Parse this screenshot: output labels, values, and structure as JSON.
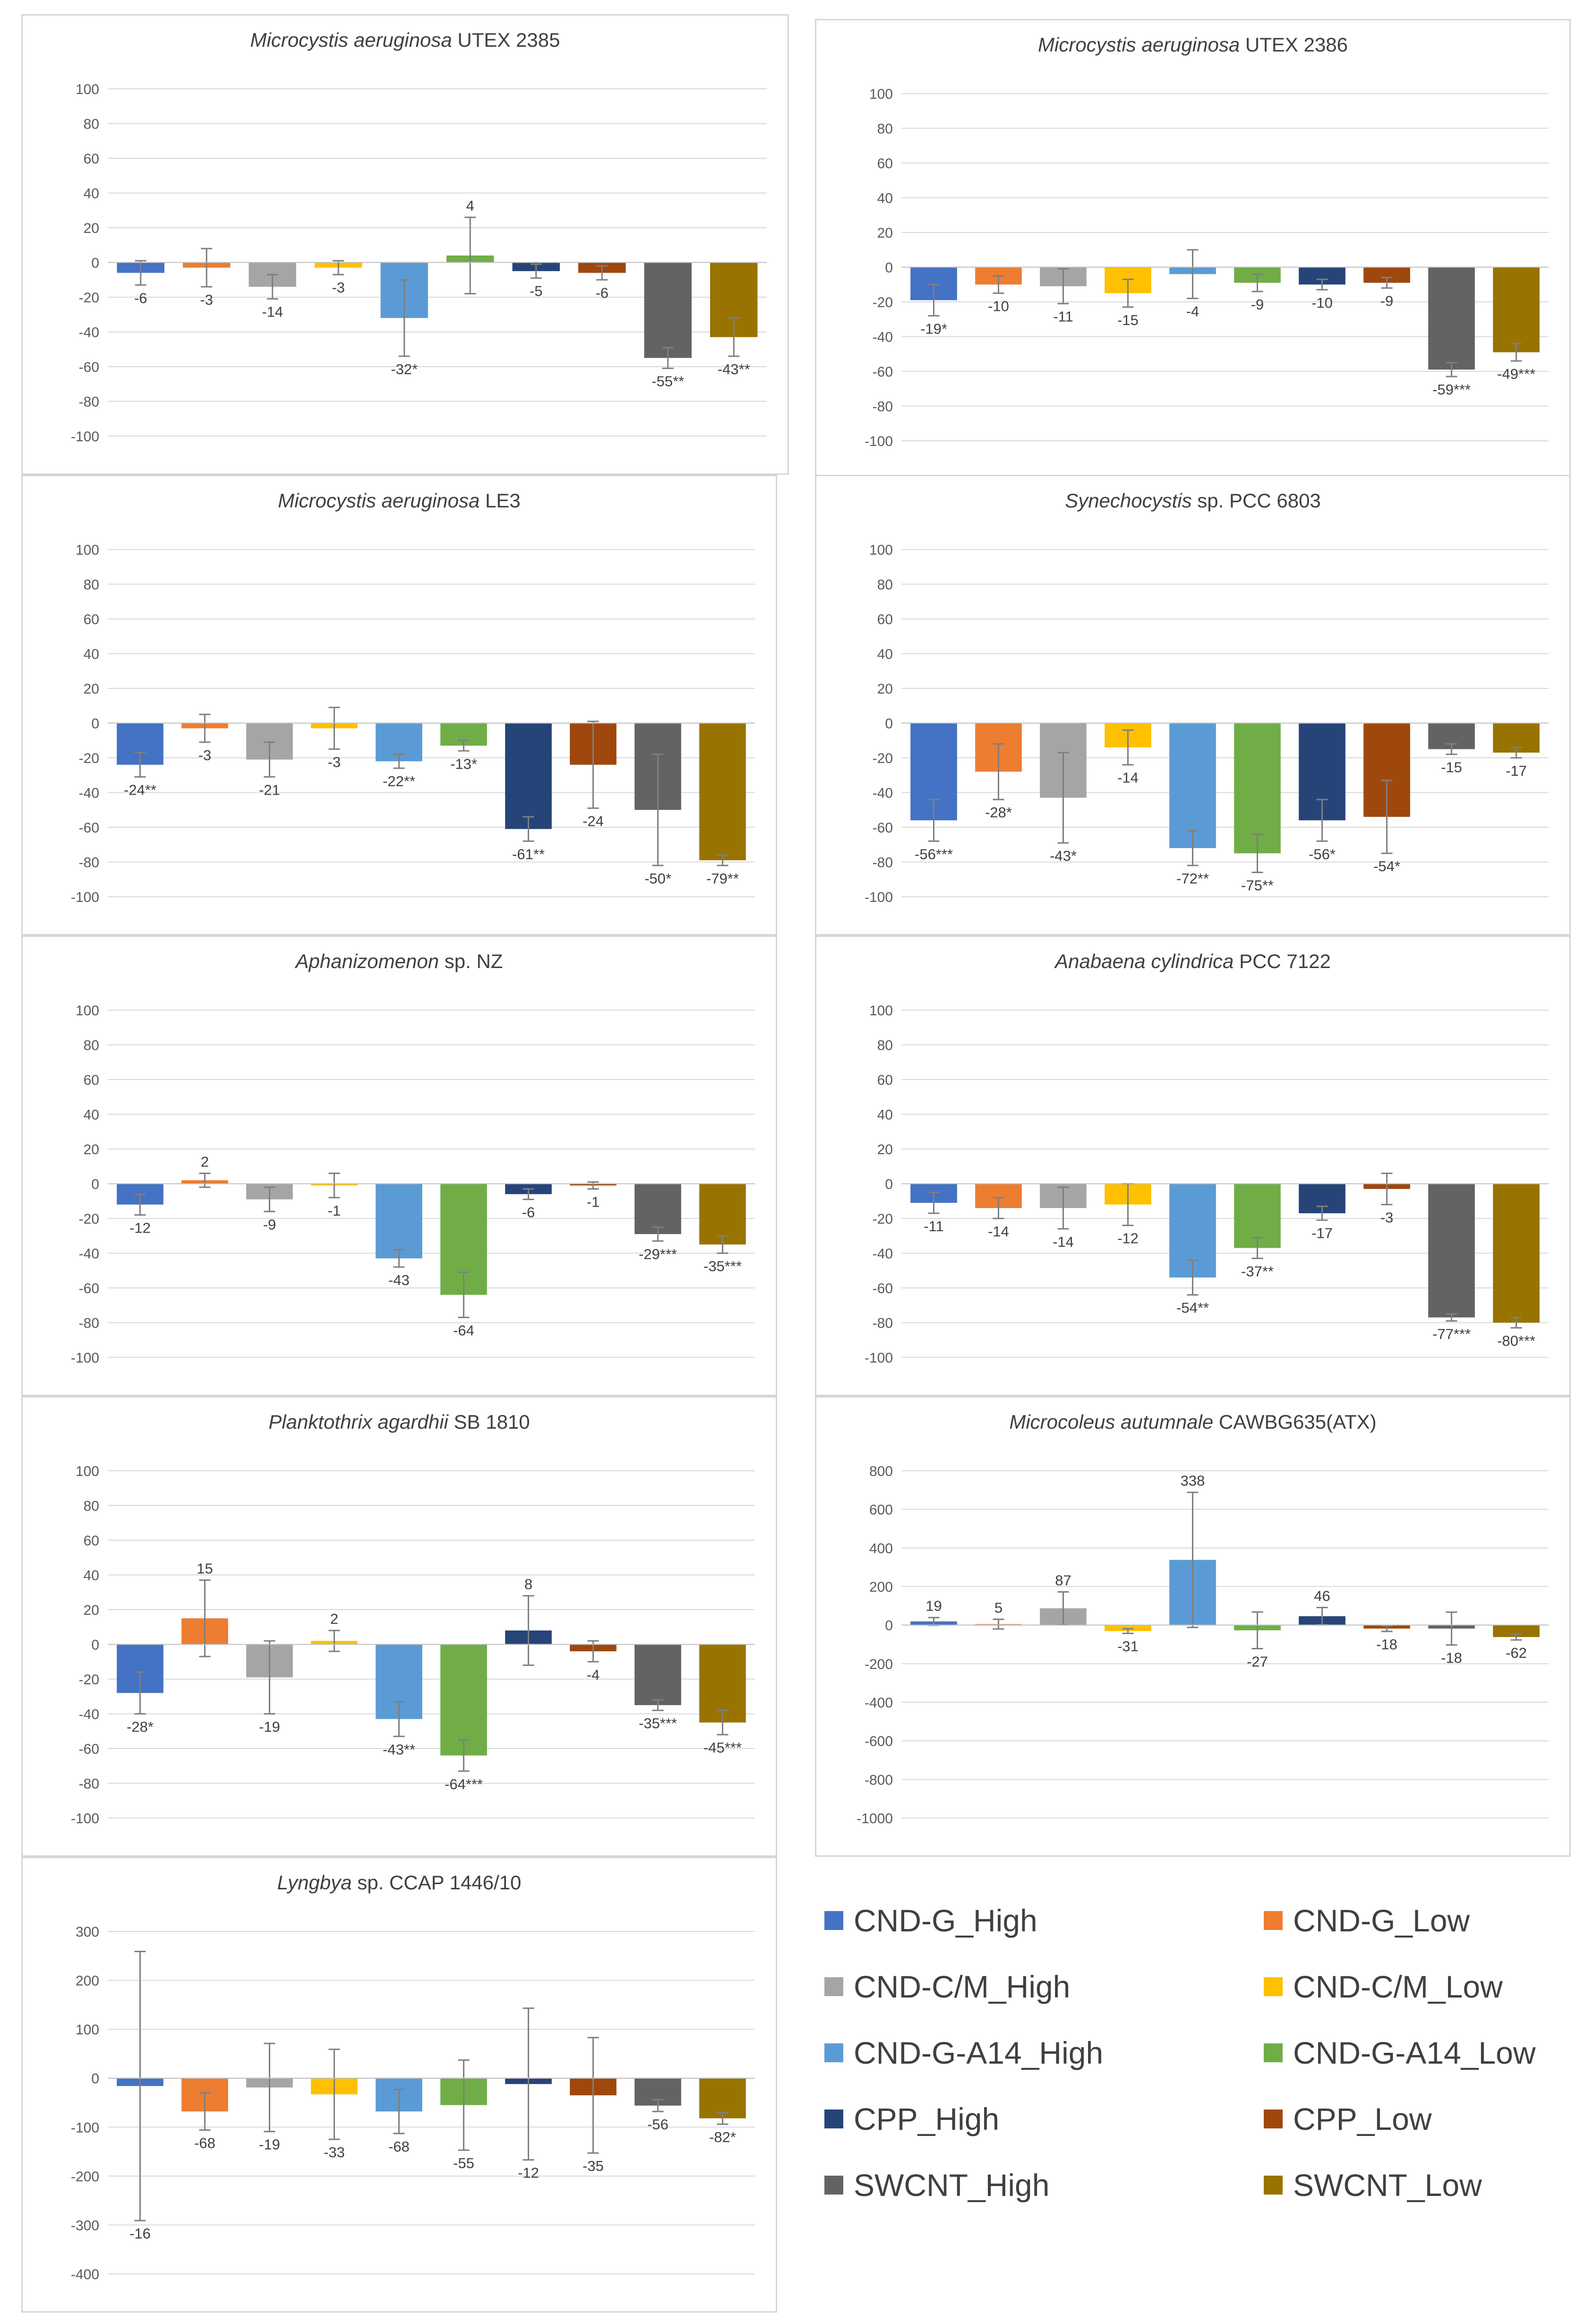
{
  "series": [
    {
      "name": "CND-G_High",
      "color": "#4472C4"
    },
    {
      "name": "CND-G_Low",
      "color": "#ED7D31"
    },
    {
      "name": "CND-C/M_High",
      "color": "#A5A5A5"
    },
    {
      "name": "CND-C/M_Low",
      "color": "#FFC000"
    },
    {
      "name": "CND-G-A14_High",
      "color": "#5B9BD5"
    },
    {
      "name": "CND-G-A14_Low",
      "color": "#70AD47"
    },
    {
      "name": "CPP_High",
      "color": "#264478"
    },
    {
      "name": "CPP_Low",
      "color": "#9E480E"
    },
    {
      "name": "SWCNT_High",
      "color": "#636363"
    },
    {
      "name": "SWCNT_Low",
      "color": "#997300"
    }
  ],
  "chart_data": [
    {
      "type": "bar",
      "title_italic": "Microcystis aeruginosa",
      "title_rest": " UTEX 2385",
      "ylim": [
        -100,
        100
      ],
      "ystep": 20,
      "values": [
        -6,
        -3,
        -14,
        -3,
        -32,
        4,
        -5,
        -6,
        -55,
        -43
      ],
      "errors": [
        7,
        11,
        7,
        4,
        22,
        22,
        4,
        4,
        6,
        11
      ],
      "labels": [
        "-6",
        "-3",
        "-14",
        "-3",
        "-32*",
        "4",
        "-5",
        "-6",
        "-55**",
        "-43**"
      ]
    },
    {
      "type": "bar",
      "title_italic": "Microcystis aeruginosa",
      "title_rest": " UTEX 2386",
      "ylim": [
        -100,
        100
      ],
      "ystep": 20,
      "values": [
        -19,
        -10,
        -11,
        -15,
        -4,
        -9,
        -10,
        -9,
        -59,
        -49
      ],
      "errors": [
        9,
        5,
        10,
        8,
        14,
        5,
        3,
        3,
        4,
        5
      ],
      "labels": [
        "-19*",
        "-10",
        "-11",
        "-15",
        "-4",
        "-9",
        "-10",
        "-9",
        "-59***",
        "-49***"
      ]
    },
    {
      "type": "bar",
      "title_italic": "Microcystis aeruginosa",
      "title_rest": " LE3",
      "ylim": [
        -100,
        100
      ],
      "ystep": 20,
      "values": [
        -24,
        -3,
        -21,
        -3,
        -22,
        -13,
        -61,
        -24,
        -50,
        -79
      ],
      "errors": [
        7,
        8,
        10,
        12,
        4,
        3,
        7,
        25,
        32,
        3
      ],
      "labels": [
        "-24**",
        "-3",
        "-21",
        "-3",
        "-22**",
        "-13*",
        "-61**",
        "-24",
        "-50*",
        "-79**"
      ]
    },
    {
      "type": "bar",
      "title_italic": "Synechocystis",
      "title_rest": " sp. PCC 6803",
      "ylim": [
        -100,
        100
      ],
      "ystep": 20,
      "values": [
        -56,
        -28,
        -43,
        -14,
        -72,
        -75,
        -56,
        -54,
        -15,
        -17
      ],
      "errors": [
        12,
        16,
        26,
        10,
        10,
        11,
        12,
        21,
        3,
        3
      ],
      "labels": [
        "-56***",
        "-28*",
        "-43*",
        "-14",
        "-72**",
        "-75**",
        "-56*",
        "-54*",
        "-15",
        "-17"
      ]
    },
    {
      "type": "bar",
      "title_italic": "Aphanizomenon",
      "title_rest": " sp. NZ",
      "ylim": [
        -100,
        100
      ],
      "ystep": 20,
      "values": [
        -12,
        2,
        -9,
        -1,
        -43,
        -64,
        -6,
        -1,
        -29,
        -35
      ],
      "errors": [
        6,
        4,
        7,
        7,
        5,
        13,
        3,
        2,
        4,
        5
      ],
      "labels": [
        "-12",
        "2",
        "-9",
        "-1",
        "-43",
        "-64",
        "-6",
        "-1",
        "-29***",
        "-35***"
      ]
    },
    {
      "type": "bar",
      "title_italic": "Anabaena cylindrica",
      "title_rest": " PCC 7122",
      "ylim": [
        -100,
        100
      ],
      "ystep": 20,
      "values": [
        -11,
        -14,
        -14,
        -12,
        -54,
        -37,
        -17,
        -3,
        -77,
        -80
      ],
      "errors": [
        6,
        6,
        12,
        12,
        10,
        6,
        4,
        9,
        2,
        3
      ],
      "labels": [
        "-11",
        "-14",
        "-14",
        "-12",
        "-54**",
        "-37**",
        "-17",
        "-3",
        "-77***",
        "-80***"
      ]
    },
    {
      "type": "bar",
      "title_italic": "Planktothrix agardhii",
      "title_rest": " SB 1810",
      "ylim": [
        -100,
        100
      ],
      "ystep": 20,
      "values": [
        -28,
        15,
        -19,
        2,
        -43,
        -64,
        8,
        -4,
        -35,
        -45
      ],
      "errors": [
        12,
        22,
        21,
        6,
        10,
        9,
        20,
        6,
        3,
        7
      ],
      "labels": [
        "-28*",
        "15",
        "-19",
        "2",
        "-43**",
        "-64***",
        "8",
        "-4",
        "-35***",
        "-45***"
      ]
    },
    {
      "type": "bar",
      "title_italic": "Microcoleus autumnale",
      "title_rest": " CAWBG635(ATX)",
      "ylim": [
        -1000,
        800
      ],
      "ystep": 200,
      "values": [
        19,
        5,
        87,
        -31,
        338,
        -27,
        46,
        -18,
        -18,
        -62
      ],
      "errors": [
        20,
        25,
        85,
        12,
        350,
        95,
        45,
        15,
        85,
        15
      ],
      "labels": [
        "19",
        "5",
        "87",
        "-31",
        "338",
        "-27",
        "46",
        "-18",
        "-18",
        "-62"
      ]
    },
    {
      "type": "bar",
      "title_italic": "Lyngbya",
      "title_rest": " sp. CCAP 1446/10",
      "ylim": [
        -400,
        300
      ],
      "ystep": 100,
      "values": [
        -16,
        -68,
        -19,
        -33,
        -68,
        -55,
        -12,
        -35,
        -56,
        -82
      ],
      "errors": [
        275,
        38,
        90,
        92,
        45,
        92,
        155,
        118,
        12,
        12
      ],
      "labels": [
        "-16",
        "-68",
        "-19",
        "-33",
        "-68",
        "-55",
        "-12",
        "-35",
        "-56",
        "-82*"
      ]
    }
  ]
}
